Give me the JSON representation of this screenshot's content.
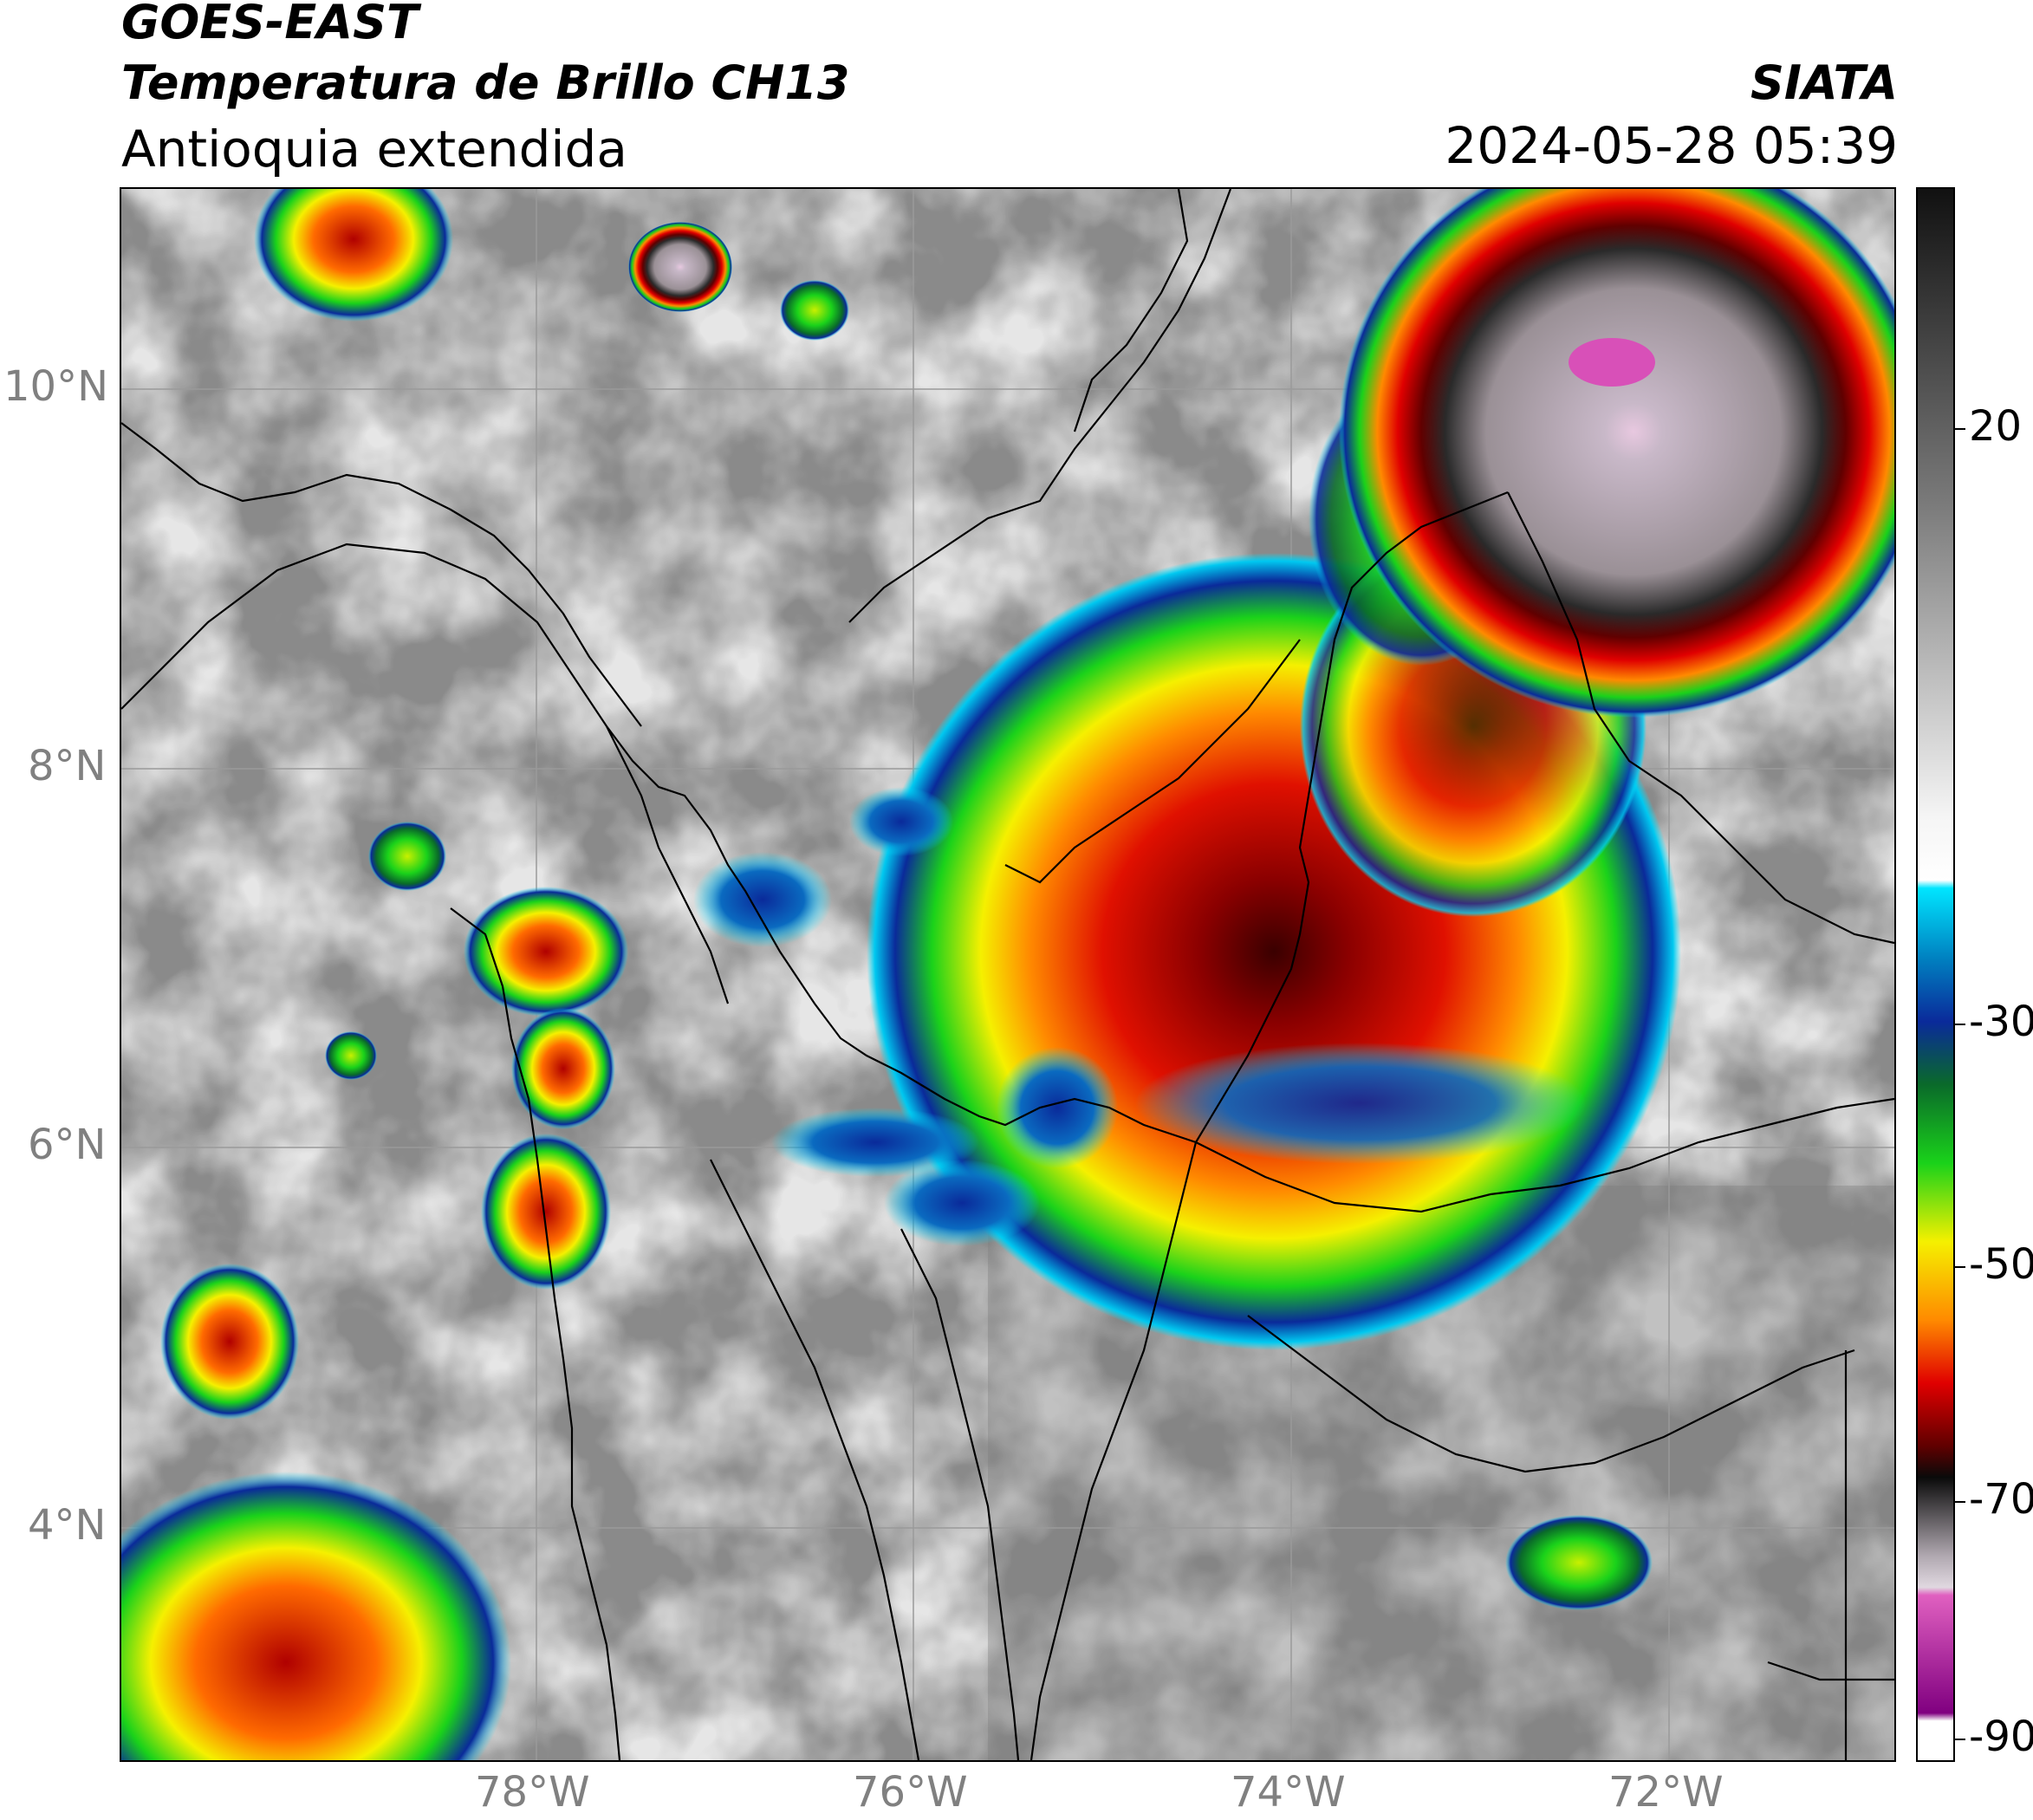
{
  "header": {
    "satellite": "GOES-EAST",
    "product": "Temperatura de Brillo CH13",
    "region": "Antioquia extendida",
    "organization": "SIATA",
    "datetime": "2024-05-28 05:39"
  },
  "map": {
    "lat_ticks": [
      {
        "value": 10,
        "label": "10°N"
      },
      {
        "value": 8,
        "label": "8°N"
      },
      {
        "value": 6,
        "label": "6°N"
      },
      {
        "value": 4,
        "label": "4°N"
      }
    ],
    "lon_ticks": [
      {
        "value": -78,
        "label": "78°W"
      },
      {
        "value": -76,
        "label": "76°W"
      },
      {
        "value": -74,
        "label": "74°W"
      },
      {
        "value": -72,
        "label": "72°W"
      }
    ],
    "lon_range": [
      -80.2,
      -70.8
    ],
    "lat_range": [
      2.6,
      11.05
    ]
  },
  "colorbar": {
    "range": [
      -90,
      35
    ],
    "ticks": [
      {
        "value": 20,
        "label": "20"
      },
      {
        "value": -30,
        "label": "-30"
      },
      {
        "value": -50,
        "label": "-50"
      },
      {
        "value": -70,
        "label": "-70"
      },
      {
        "value": -90,
        "label": "-90"
      }
    ],
    "colors": {
      "warm_top": "#111111",
      "grey_mid": "#7a7a7a",
      "white_low": "#f5f5f5",
      "cyan": "#00e5ff",
      "blue": "#0a2a9a",
      "green": "#1ad21a",
      "yellow": "#f5f000",
      "orange": "#ff8a00",
      "red": "#e00000",
      "dark_red": "#600000",
      "black": "#0a0a0a",
      "grey_cold": "#b0a8b0",
      "pink": "#e060c0",
      "purple": "#800080",
      "white_end": "#ffffff"
    }
  }
}
